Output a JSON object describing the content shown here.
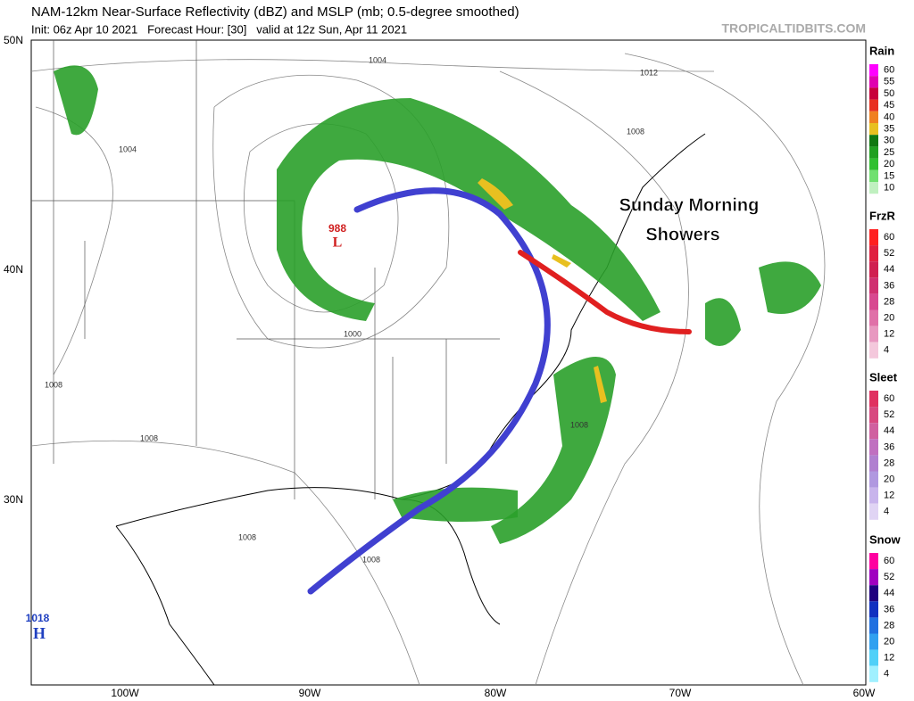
{
  "header": {
    "title": "NAM-12km Near-Surface Reflectivity (dBZ) and MSLP (mb; 0.5-degree smoothed)",
    "subtitle": "Init: 06z Apr 10 2021   Forecast Hour: [30]   valid at 12z Sun, Apr 11 2021",
    "credit": "TROPICALTIDBITS.COM"
  },
  "map": {
    "annotation": [
      "Sunday Morning",
      "Showers"
    ],
    "low": {
      "pressure": "988",
      "symbol": "L"
    },
    "high": {
      "pressure": "1018",
      "symbol": "H"
    },
    "isobar_labels": [
      "1004",
      "1012",
      "1008",
      "1004",
      "1000",
      "1008",
      "1008",
      "1008",
      "1008",
      "1008"
    ],
    "lat_labels": [
      "50N",
      "40N",
      "30N"
    ],
    "lon_labels": [
      "100W",
      "90W",
      "80W",
      "70W",
      "60W"
    ]
  },
  "legends": [
    {
      "title": "Rain",
      "values": [
        60,
        55,
        50,
        45,
        40,
        35,
        30,
        25,
        20,
        15,
        10
      ],
      "colors": [
        "#ff00ff",
        "#e000b0",
        "#c8003c",
        "#e83020",
        "#f08020",
        "#e8c020",
        "#107810",
        "#20a020",
        "#30c030",
        "#70e070",
        "#c0f0c0"
      ]
    },
    {
      "title": "FrzR",
      "values": [
        60,
        52,
        44,
        36,
        28,
        20,
        12,
        4
      ],
      "colors": [
        "#ff2020",
        "#e02040",
        "#d02050",
        "#d03070",
        "#d84890",
        "#e070a8",
        "#e898c0",
        "#f4c8dc"
      ]
    },
    {
      "title": "Sleet",
      "values": [
        60,
        52,
        44,
        36,
        28,
        20,
        12,
        4
      ],
      "colors": [
        "#e03060",
        "#d84880",
        "#d060a0",
        "#c070c0",
        "#b080d0",
        "#b098e0",
        "#c8b4ec",
        "#e0d4f4"
      ]
    },
    {
      "title": "Snow",
      "values": [
        60,
        52,
        44,
        36,
        28,
        20,
        12,
        4
      ],
      "colors": [
        "#ff00a0",
        "#a000c0",
        "#200080",
        "#1030c0",
        "#2070e0",
        "#30a0f0",
        "#50d0f8",
        "#a0f0ff"
      ]
    }
  ]
}
